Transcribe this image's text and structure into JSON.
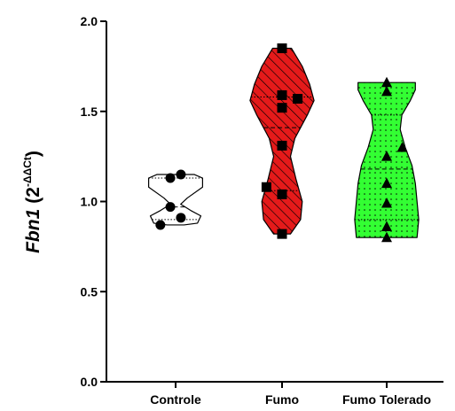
{
  "chart_data": {
    "type": "violin",
    "ylabel": {
      "gene": "Fbn1",
      "base_open": "(2",
      "exponent": "-ΔΔCt",
      "close": ")"
    },
    "ylim": [
      0.0,
      2.0
    ],
    "yticks": [
      0.0,
      0.5,
      1.0,
      1.5,
      2.0
    ],
    "ytick_labels": [
      "0.0",
      "0.5",
      "1.0",
      "1.5",
      "2.0"
    ],
    "categories": [
      "Controle",
      "Fumo",
      "Fumo Tolerado"
    ],
    "groups": [
      {
        "label": "Controle",
        "fill": "#ffffff",
        "pattern": "none",
        "marker": "circle",
        "range": [
          0.87,
          1.15
        ],
        "median": 0.97,
        "quartiles": [
          0.9,
          1.13
        ],
        "profile": [
          [
            0.87,
            0.25
          ],
          [
            0.88,
            0.65
          ],
          [
            0.92,
            0.75
          ],
          [
            0.95,
            0.45
          ],
          [
            0.985,
            0.15
          ],
          [
            1.02,
            0.35
          ],
          [
            1.08,
            0.8
          ],
          [
            1.13,
            0.8
          ],
          [
            1.15,
            0.55
          ]
        ],
        "points": [
          [
            -0.78,
            0.87
          ],
          [
            -0.27,
            0.97
          ],
          [
            -0.27,
            1.13
          ],
          [
            0.27,
            1.15
          ],
          [
            0.27,
            0.91
          ]
        ]
      },
      {
        "label": "Fumo",
        "fill": "#e51a1a",
        "pattern": "diagonal-hatch",
        "marker": "square",
        "range": [
          0.82,
          1.85
        ],
        "median": 1.41,
        "quartiles": [
          1.06,
          1.58
        ],
        "profile": [
          [
            0.82,
            0.25
          ],
          [
            0.9,
            0.55
          ],
          [
            1.0,
            0.6
          ],
          [
            1.12,
            0.42
          ],
          [
            1.25,
            0.25
          ],
          [
            1.35,
            0.38
          ],
          [
            1.48,
            0.75
          ],
          [
            1.56,
            0.95
          ],
          [
            1.65,
            0.82
          ],
          [
            1.75,
            0.6
          ],
          [
            1.85,
            0.28
          ]
        ],
        "points": [
          [
            -0.8,
            1.08
          ],
          [
            0.0,
            1.85
          ],
          [
            0.0,
            1.59
          ],
          [
            0.0,
            1.52
          ],
          [
            0.0,
            1.31
          ],
          [
            0.0,
            1.04
          ],
          [
            0.0,
            0.82
          ],
          [
            0.8,
            1.57
          ]
        ]
      },
      {
        "label": "Fumo Tolerado",
        "fill": "#33ff33",
        "pattern": "dots",
        "marker": "triangle",
        "range": [
          0.8,
          1.66
        ],
        "median": 1.18,
        "quartiles": [
          0.9,
          1.48
        ],
        "profile": [
          [
            0.8,
            0.9
          ],
          [
            0.9,
            0.95
          ],
          [
            1.0,
            0.9
          ],
          [
            1.1,
            0.85
          ],
          [
            1.2,
            0.75
          ],
          [
            1.3,
            0.55
          ],
          [
            1.4,
            0.4
          ],
          [
            1.48,
            0.45
          ],
          [
            1.56,
            0.7
          ],
          [
            1.62,
            0.85
          ],
          [
            1.66,
            0.85
          ]
        ],
        "points": [
          [
            0.0,
            1.66
          ],
          [
            0.0,
            1.61
          ],
          [
            0.0,
            1.25
          ],
          [
            0.0,
            1.1
          ],
          [
            0.0,
            0.99
          ],
          [
            0.0,
            0.86
          ],
          [
            0.0,
            0.8
          ],
          [
            0.8,
            1.3
          ]
        ]
      }
    ]
  }
}
